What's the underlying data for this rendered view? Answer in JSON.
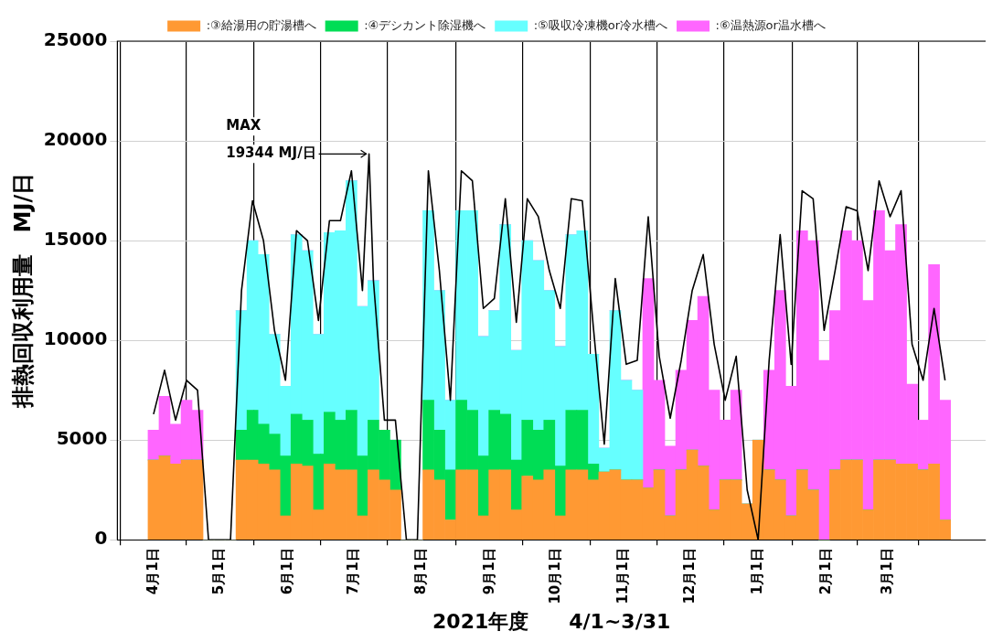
{
  "chart_data": {
    "type": "bar",
    "stacked": true,
    "x": [
      "2021-04-01",
      "2021-04-06",
      "2021-04-11",
      "2021-04-16",
      "2021-04-21",
      "2021-04-26",
      "2021-05-01",
      "2021-05-06",
      "2021-05-11",
      "2021-05-16",
      "2021-05-21",
      "2021-05-26",
      "2021-05-31",
      "2021-06-05",
      "2021-06-10",
      "2021-06-15",
      "2021-06-20",
      "2021-06-25",
      "2021-06-30",
      "2021-07-05",
      "2021-07-10",
      "2021-07-15",
      "2021-07-20",
      "2021-07-25",
      "2021-07-30",
      "2021-08-04",
      "2021-08-09",
      "2021-08-14",
      "2021-08-19",
      "2021-08-24",
      "2021-08-29",
      "2021-09-03",
      "2021-09-08",
      "2021-09-13",
      "2021-09-18",
      "2021-09-23",
      "2021-09-28",
      "2021-10-03",
      "2021-10-08",
      "2021-10-13",
      "2021-10-18",
      "2021-10-23",
      "2021-10-28",
      "2021-11-02",
      "2021-11-07",
      "2021-11-12",
      "2021-11-17",
      "2021-11-22",
      "2021-11-27",
      "2021-12-02",
      "2021-12-07",
      "2021-12-12",
      "2021-12-17",
      "2021-12-22",
      "2021-12-27",
      "2022-01-01",
      "2022-01-06",
      "2022-01-11",
      "2022-01-16",
      "2022-01-21",
      "2022-01-26",
      "2022-01-31",
      "2022-02-05",
      "2022-02-10",
      "2022-02-15",
      "2022-02-20",
      "2022-02-25",
      "2022-03-02",
      "2022-03-07",
      "2022-03-12",
      "2022-03-17",
      "2022-03-22",
      "2022-03-27"
    ],
    "series": [
      {
        "name": ":③給湯用の貯湯槽へ",
        "color": "#ff9933",
        "values": [
          4000,
          4200,
          3800,
          4000,
          4000,
          0,
          0,
          0,
          4000,
          4000,
          3800,
          3500,
          1200,
          3800,
          3700,
          1500,
          3800,
          3500,
          3500,
          1200,
          3500,
          3000,
          2500,
          0,
          0,
          3500,
          3000,
          1000,
          3500,
          3500,
          1200,
          3500,
          3500,
          1500,
          3200,
          3000,
          3500,
          1200,
          3500,
          3500,
          3000,
          3400,
          3500,
          3000,
          3000,
          2600,
          3500,
          1200,
          3500,
          4500,
          3700,
          1500,
          3000,
          3000,
          1800,
          5000,
          3500,
          3000,
          1200,
          3500,
          2500,
          0,
          3500,
          4000,
          4000,
          1500,
          4000,
          4000,
          3800,
          3800,
          3500,
          3800,
          1000
        ]
      },
      {
        "name": ":④デシカント除湿機へ",
        "color": "#00dd55",
        "values": [
          0,
          0,
          0,
          0,
          0,
          0,
          0,
          0,
          1500,
          2500,
          2000,
          1800,
          3000,
          2500,
          2300,
          2800,
          2600,
          2500,
          3000,
          3000,
          2500,
          2500,
          2500,
          0,
          0,
          3500,
          2500,
          2500,
          3500,
          3000,
          3000,
          3000,
          2800,
          2500,
          2800,
          2500,
          2500,
          2500,
          3000,
          3000,
          800,
          0,
          0,
          0,
          0,
          0,
          0,
          0,
          0,
          0,
          0,
          0,
          0,
          0,
          0,
          0,
          0,
          0,
          0,
          0,
          0,
          0,
          0,
          0,
          0,
          0,
          0,
          0,
          0,
          0,
          0,
          0,
          0
        ]
      },
      {
        "name": ":⑤吸収冷凍機or冷水槽へ",
        "color": "#66ffff",
        "values": [
          0,
          0,
          0,
          0,
          0,
          0,
          0,
          0,
          6000,
          8500,
          8500,
          5000,
          3500,
          9000,
          8500,
          6000,
          9000,
          9500,
          11500,
          7500,
          7000,
          0,
          0,
          0,
          0,
          9500,
          7000,
          3500,
          9500,
          10000,
          6000,
          5000,
          9500,
          5500,
          9000,
          8500,
          6500,
          6000,
          8800,
          9000,
          5500,
          1200,
          8000,
          5000,
          4500,
          0,
          0,
          0,
          0,
          0,
          0,
          0,
          0,
          0,
          0,
          0,
          0,
          0,
          0,
          0,
          0,
          0,
          0,
          0,
          0,
          0,
          0,
          0,
          0,
          0,
          0,
          0,
          0
        ]
      },
      {
        "name": ":⑥温熱源or温水槽へ",
        "color": "#ff66ff",
        "values": [
          1500,
          3000,
          2000,
          3000,
          2500,
          0,
          0,
          0,
          0,
          0,
          0,
          0,
          0,
          0,
          0,
          0,
          0,
          0,
          0,
          0,
          0,
          0,
          0,
          0,
          0,
          0,
          0,
          0,
          0,
          0,
          0,
          0,
          0,
          0,
          0,
          0,
          0,
          0,
          0,
          0,
          0,
          0,
          0,
          0,
          0,
          10500,
          4500,
          3500,
          5000,
          6500,
          8500,
          6000,
          3000,
          4500,
          0,
          0,
          5000,
          9500,
          6500,
          12000,
          12500,
          9000,
          8000,
          11500,
          11000,
          10500,
          12500,
          10500,
          12000,
          4000,
          2500,
          10000,
          6000
        ]
      },
      {
        "type": "line",
        "color": "#000000",
        "x": [
          "2021-04-01",
          "2021-04-06",
          "2021-04-11",
          "2021-04-16",
          "2021-04-21",
          "2021-04-26",
          "2021-05-01",
          "2021-05-06",
          "2021-05-11",
          "2021-05-16",
          "2021-05-21",
          "2021-05-26",
          "2021-05-31",
          "2021-06-05",
          "2021-06-10",
          "2021-06-15",
          "2021-06-20",
          "2021-06-25",
          "2021-06-30",
          "2021-07-05",
          "2021-07-08",
          "2021-07-10",
          "2021-07-15",
          "2021-07-20",
          "2021-07-25",
          "2021-07-30",
          "2021-08-04",
          "2021-08-09",
          "2021-08-14",
          "2021-08-19",
          "2021-08-24",
          "2021-08-29",
          "2021-09-03",
          "2021-09-08",
          "2021-09-13",
          "2021-09-18",
          "2021-09-23",
          "2021-09-28",
          "2021-10-03",
          "2021-10-08",
          "2021-10-13",
          "2021-10-18",
          "2021-10-23",
          "2021-10-28",
          "2021-11-02",
          "2021-11-07",
          "2021-11-12",
          "2021-11-17",
          "2021-11-22",
          "2021-11-27",
          "2021-12-02",
          "2021-12-07",
          "2021-12-12",
          "2021-12-17",
          "2021-12-22",
          "2021-12-27",
          "2022-01-01",
          "2022-01-06",
          "2022-01-11",
          "2022-01-16",
          "2022-01-21",
          "2022-01-26",
          "2022-01-31",
          "2022-02-05",
          "2022-02-10",
          "2022-02-15",
          "2022-02-20",
          "2022-02-25",
          "2022-03-02",
          "2022-03-07",
          "2022-03-12",
          "2022-03-17",
          "2022-03-22",
          "2022-03-27"
        ],
        "values": [
          6300,
          8500,
          6000,
          8000,
          7500,
          0,
          0,
          0,
          12500,
          17000,
          15000,
          10500,
          8000,
          15500,
          15000,
          11000,
          16000,
          16000,
          18500,
          12500,
          19344,
          13000,
          6000,
          6000,
          0,
          0,
          18500,
          13500,
          7000,
          18500,
          18000,
          11600,
          12100,
          17100,
          10900,
          17100,
          16200,
          13500,
          11600,
          17100,
          17000,
          10700,
          4800,
          13100,
          8800,
          9000,
          16200,
          9200,
          6100,
          9000,
          12500,
          14300,
          9800,
          7000,
          9200,
          2500,
          0,
          9000,
          15300,
          8800,
          17500,
          17100,
          10500,
          13500,
          16700,
          16500,
          13500,
          18000,
          16200,
          17500,
          9800,
          8000,
          11600,
          8000
        ]
      }
    ],
    "xlim": [
      "2021-04-01",
      "2022-03-29"
    ],
    "xticks": [
      {
        "value": "2021-04-01",
        "label": "4月1日"
      },
      {
        "value": "2021-05-01",
        "label": "5月1日"
      },
      {
        "value": "2021-06-01",
        "label": "6月1日"
      },
      {
        "value": "2021-07-01",
        "label": "7月1日"
      },
      {
        "value": "2021-08-01",
        "label": "8月1日"
      },
      {
        "value": "2021-09-01",
        "label": "9月1日"
      },
      {
        "value": "2021-10-01",
        "label": "10月1日"
      },
      {
        "value": "2021-11-01",
        "label": "11月1日"
      },
      {
        "value": "2021-12-01",
        "label": "12月1日"
      },
      {
        "value": "2022-01-01",
        "label": "1月1日"
      },
      {
        "value": "2022-02-01",
        "label": "2月1日"
      },
      {
        "value": "2022-03-01",
        "label": "3月1日"
      }
    ],
    "ylim": [
      0,
      25000
    ],
    "yticks": [
      0,
      5000,
      10000,
      15000,
      20000,
      25000
    ],
    "xlabel": "2021年度　　4/1~3/31",
    "ylabel": "排熱回収利用量　MJ/日",
    "annotations": [
      {
        "text": "MAX\n19344 MJ/日",
        "x": "2021-07-08",
        "y": 19344
      }
    ],
    "grid": true,
    "legend": "top",
    "marker": "none"
  }
}
